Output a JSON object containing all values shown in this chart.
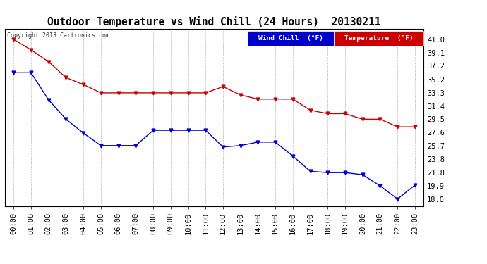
{
  "title": "Outdoor Temperature vs Wind Chill (24 Hours)  20130211",
  "copyright": "Copyright 2013 Cartronics.com",
  "x_labels": [
    "00:00",
    "01:00",
    "02:00",
    "03:00",
    "04:00",
    "05:00",
    "06:00",
    "07:00",
    "08:00",
    "09:00",
    "10:00",
    "11:00",
    "12:00",
    "13:00",
    "14:00",
    "15:00",
    "16:00",
    "17:00",
    "18:00",
    "19:00",
    "20:00",
    "21:00",
    "22:00",
    "23:00"
  ],
  "temperature": [
    41.0,
    39.5,
    37.8,
    35.5,
    34.5,
    33.3,
    33.3,
    33.3,
    33.3,
    33.3,
    33.3,
    33.3,
    34.2,
    33.0,
    32.4,
    32.4,
    32.4,
    30.8,
    30.3,
    30.3,
    29.5,
    29.5,
    28.4,
    28.4
  ],
  "wind_chill": [
    36.2,
    36.2,
    32.3,
    29.5,
    27.5,
    25.7,
    25.7,
    25.7,
    27.9,
    27.9,
    27.9,
    27.9,
    25.5,
    25.7,
    26.2,
    26.2,
    24.2,
    22.0,
    21.8,
    21.8,
    21.5,
    19.9,
    18.0,
    20.0
  ],
  "temp_color": "#cc0000",
  "wind_chill_color": "#0000cc",
  "y_ticks": [
    18.0,
    19.9,
    21.8,
    23.8,
    25.7,
    27.6,
    29.5,
    31.4,
    33.3,
    35.2,
    37.2,
    39.1,
    41.0
  ],
  "ylim": [
    17.0,
    42.5
  ],
  "background_color": "#ffffff",
  "plot_bg_color": "#ffffff",
  "grid_color": "#aaaaaa",
  "legend_wind_chill_bg": "#0000cc",
  "legend_temp_bg": "#cc0000",
  "legend_text_color": "#ffffff",
  "title_fontsize": 10.5,
  "tick_fontsize": 7.5
}
